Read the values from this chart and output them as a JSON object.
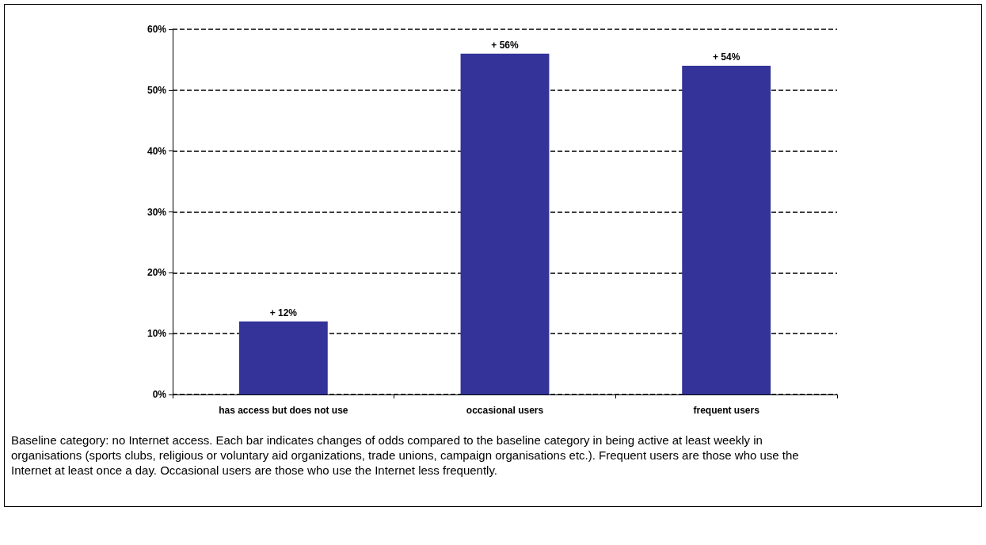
{
  "chart_data": {
    "type": "bar",
    "categories": [
      "has access but does not use",
      "occasional users",
      "frequent users"
    ],
    "values": [
      12,
      56,
      54
    ],
    "color": "#333399",
    "value_labels": [
      "+ 12%",
      "+ 56%",
      "+ 54%"
    ],
    "ylim": [
      0,
      60
    ],
    "yticks": [
      {
        "value": 0,
        "label": "0%"
      },
      {
        "value": 10,
        "label": "10%"
      },
      {
        "value": 20,
        "label": "20%"
      },
      {
        "value": 30,
        "label": "30%"
      },
      {
        "value": 40,
        "label": "40%"
      },
      {
        "value": 50,
        "label": "50%"
      },
      {
        "value": 60,
        "label": "60%"
      }
    ],
    "grid": "y",
    "annotations": [
      "Baseline category: no Internet access. Each bar indicates changes of odds compared to the baseline category in being active at least weekly in organisations (sports clubs, religious or voluntary aid organizations, trade unions, campaign organisations etc.). Frequent users are those who use the Internet at least once a day. Occasional users are those who use the Internet less frequently."
    ]
  }
}
